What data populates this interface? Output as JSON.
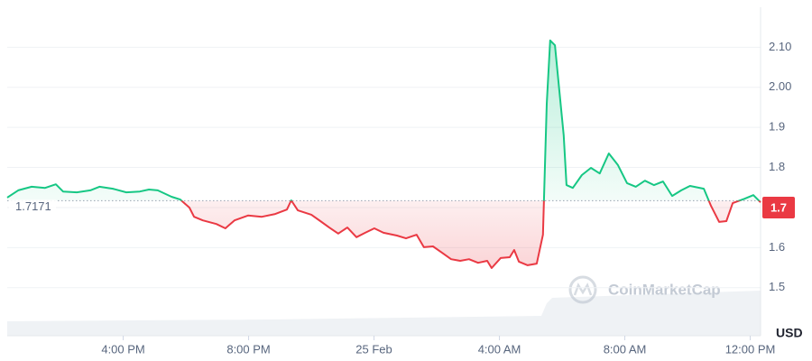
{
  "chart_data": {
    "type": "line",
    "x": [
      12.3,
      12.65,
      13.08,
      13.51,
      13.85,
      14.08,
      14.52,
      14.95,
      15.24,
      15.67,
      16.1,
      16.53,
      16.82,
      17.1,
      17.54,
      17.82,
      18.11,
      18.26,
      18.54,
      18.97,
      19.26,
      19.55,
      19.98,
      20.42,
      20.85,
      21.22,
      21.36,
      21.57,
      22.0,
      22.29,
      22.57,
      22.86,
      23.15,
      23.44,
      23.72,
      24.01,
      24.3,
      24.73,
      25.02,
      25.36,
      25.59,
      25.88,
      26.17,
      26.46,
      26.75,
      27.03,
      27.32,
      27.61,
      27.75,
      28.04,
      28.33,
      28.47,
      28.62,
      28.9,
      29.19,
      29.39,
      29.51,
      29.62,
      29.77,
      29.91,
      30.05,
      30.14,
      30.34,
      30.63,
      30.92,
      31.2,
      31.49,
      31.78,
      32.07,
      32.35,
      32.64,
      32.93,
      33.22,
      33.51,
      33.8,
      34.08,
      34.52,
      34.75,
      35.01,
      35.24,
      35.44,
      35.82,
      36.1,
      36.33
    ],
    "values": [
      1.725,
      1.743,
      1.752,
      1.749,
      1.758,
      1.74,
      1.738,
      1.743,
      1.752,
      1.747,
      1.738,
      1.74,
      1.745,
      1.743,
      1.727,
      1.72,
      1.7,
      1.677,
      1.668,
      1.659,
      1.648,
      1.668,
      1.68,
      1.677,
      1.684,
      1.695,
      1.718,
      1.693,
      1.682,
      1.666,
      1.65,
      1.635,
      1.65,
      1.626,
      1.637,
      1.648,
      1.637,
      1.63,
      1.623,
      1.632,
      1.601,
      1.603,
      1.587,
      1.571,
      1.567,
      1.571,
      1.562,
      1.567,
      1.549,
      1.574,
      1.576,
      1.594,
      1.565,
      1.556,
      1.56,
      1.632,
      1.959,
      2.117,
      2.105,
      1.993,
      1.88,
      1.756,
      1.749,
      1.781,
      1.799,
      1.785,
      1.835,
      1.806,
      1.761,
      1.752,
      1.767,
      1.756,
      1.765,
      1.729,
      1.743,
      1.754,
      1.747,
      1.704,
      1.664,
      1.666,
      1.711,
      1.722,
      1.731,
      1.713
    ],
    "up_color": "#16c784",
    "down_color": "#ea3943",
    "baseline": 1.7171,
    "current_price": 1.7,
    "xlim": [
      12.3,
      36.33
    ],
    "ylim": [
      1.38,
      2.2
    ],
    "xticks": [
      {
        "value": 16,
        "label": "4:00 PM"
      },
      {
        "value": 20,
        "label": "8:00 PM"
      },
      {
        "value": 24,
        "label": "25 Feb"
      },
      {
        "value": 28,
        "label": "4:00 AM"
      },
      {
        "value": 32,
        "label": "8:00 AM"
      },
      {
        "value": 36,
        "label": "12:00 PM"
      }
    ],
    "yticks": [
      1.5,
      1.6,
      1.7,
      1.8,
      1.9,
      {
        "value": 2.0,
        "label": "2.00"
      },
      {
        "value": 2.1,
        "label": "2.10"
      }
    ],
    "grid": true,
    "y_unit": "USD",
    "watermark": "CoinMarketCap"
  }
}
